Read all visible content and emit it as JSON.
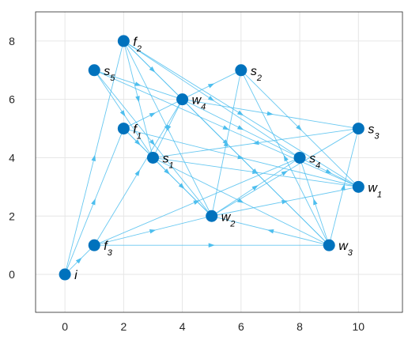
{
  "chart_data": {
    "type": "scatter",
    "xlim": [
      -1,
      11.5
    ],
    "ylim": [
      -1.3,
      9
    ],
    "xticks": [
      0,
      2,
      4,
      6,
      8,
      10
    ],
    "yticks": [
      0,
      2,
      4,
      6,
      8
    ],
    "grid": true,
    "colors": {
      "node": "#0072BD",
      "edge": "#4DBEEE",
      "grid": "#e6e6e6",
      "axis": "#262626"
    },
    "nodes": [
      {
        "id": "i",
        "base": "i",
        "sub": "",
        "x": 0,
        "y": 0
      },
      {
        "id": "f1",
        "base": "f",
        "sub": "1",
        "x": 2,
        "y": 5
      },
      {
        "id": "f2",
        "base": "f",
        "sub": "2",
        "x": 2,
        "y": 8
      },
      {
        "id": "f3",
        "base": "f",
        "sub": "3",
        "x": 1,
        "y": 1
      },
      {
        "id": "w1",
        "base": "w",
        "sub": "1",
        "x": 10,
        "y": 3
      },
      {
        "id": "w2",
        "base": "w",
        "sub": "2",
        "x": 5,
        "y": 2
      },
      {
        "id": "w3",
        "base": "w",
        "sub": "3",
        "x": 9,
        "y": 1
      },
      {
        "id": "w4",
        "base": "w",
        "sub": "4",
        "x": 4,
        "y": 6
      },
      {
        "id": "s1",
        "base": "s",
        "sub": "1",
        "x": 3,
        "y": 4
      },
      {
        "id": "s2",
        "base": "s",
        "sub": "2",
        "x": 6,
        "y": 7
      },
      {
        "id": "s3",
        "base": "s",
        "sub": "3",
        "x": 10,
        "y": 5
      },
      {
        "id": "s4",
        "base": "s",
        "sub": "4",
        "x": 8,
        "y": 4
      },
      {
        "id": "s5",
        "base": "s",
        "sub": "5",
        "x": 1,
        "y": 7
      }
    ],
    "edges": [
      [
        "i",
        "f1"
      ],
      [
        "i",
        "f2"
      ],
      [
        "i",
        "f3"
      ],
      [
        "f3",
        "w2"
      ],
      [
        "f3",
        "w3"
      ],
      [
        "f3",
        "w4"
      ],
      [
        "f3",
        "s4"
      ],
      [
        "f1",
        "w2"
      ],
      [
        "f1",
        "w1"
      ],
      [
        "f1",
        "w4"
      ],
      [
        "f1",
        "s1"
      ],
      [
        "f2",
        "w4"
      ],
      [
        "f2",
        "w1"
      ],
      [
        "f2",
        "w2"
      ],
      [
        "f2",
        "w3"
      ],
      [
        "f2",
        "s4"
      ],
      [
        "f2",
        "s1"
      ],
      [
        "s5",
        "w4"
      ],
      [
        "s5",
        "w1"
      ],
      [
        "s5",
        "w2"
      ],
      [
        "s5",
        "s1"
      ],
      [
        "w4",
        "s2"
      ],
      [
        "w4",
        "s3"
      ],
      [
        "w4",
        "s4"
      ],
      [
        "w4",
        "s1"
      ],
      [
        "w4",
        "w3"
      ],
      [
        "s1",
        "w3"
      ],
      [
        "s1",
        "w1"
      ],
      [
        "s1",
        "w2"
      ],
      [
        "w2",
        "s2"
      ],
      [
        "w2",
        "s3"
      ],
      [
        "w2",
        "w1"
      ],
      [
        "w2",
        "s4"
      ],
      [
        "w3",
        "s2"
      ],
      [
        "w3",
        "s3"
      ],
      [
        "w3",
        "s4"
      ],
      [
        "w3",
        "w2"
      ],
      [
        "s2",
        "w1"
      ],
      [
        "s4",
        "w1"
      ],
      [
        "s3",
        "s1"
      ]
    ]
  }
}
